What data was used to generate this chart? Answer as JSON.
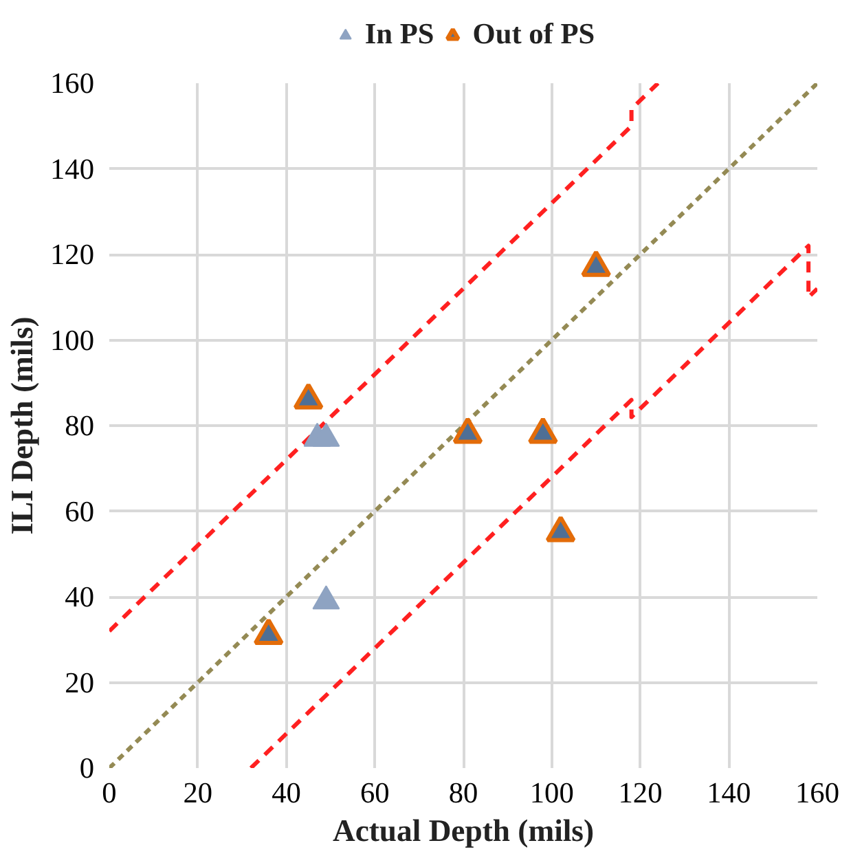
{
  "chart_data": {
    "type": "scatter",
    "xlabel": "Actual Depth (mils)",
    "ylabel": "ILI Depth (mils)",
    "xlim": [
      0,
      160
    ],
    "ylim": [
      0,
      160
    ],
    "xticks": [
      0,
      20,
      40,
      60,
      80,
      100,
      120,
      140,
      160
    ],
    "yticks": [
      0,
      20,
      40,
      60,
      80,
      100,
      120,
      140,
      160
    ],
    "grid": true,
    "legend": "top",
    "marker": "triangle",
    "series": [
      {
        "type": "line",
        "color": "#948a54",
        "line_style": "dotted",
        "marker": "none",
        "x": [
          0,
          160
        ],
        "values": [
          0,
          160
        ]
      },
      {
        "type": "line",
        "color": "#ff2020",
        "line_style": "dashed",
        "marker": "none",
        "x": [
          0,
          118,
          118,
          124
        ],
        "values": [
          32,
          150,
          154,
          160
        ]
      },
      {
        "type": "line",
        "color": "#ff2020",
        "line_style": "dashed",
        "marker": "none",
        "x": [
          32,
          118,
          118,
          158,
          158,
          160
        ],
        "values": [
          0,
          86,
          82,
          122,
          110,
          112
        ]
      },
      {
        "name": "In PS",
        "color": "#8ea3c2",
        "x": [
          47,
          49,
          49
        ],
        "values": [
          77,
          77,
          39
        ]
      },
      {
        "name": "Out of PS",
        "color": "#e36c09",
        "x": [
          45,
          36,
          81,
          98,
          102,
          110
        ],
        "values": [
          86,
          31,
          78,
          78,
          55,
          117
        ]
      }
    ]
  }
}
